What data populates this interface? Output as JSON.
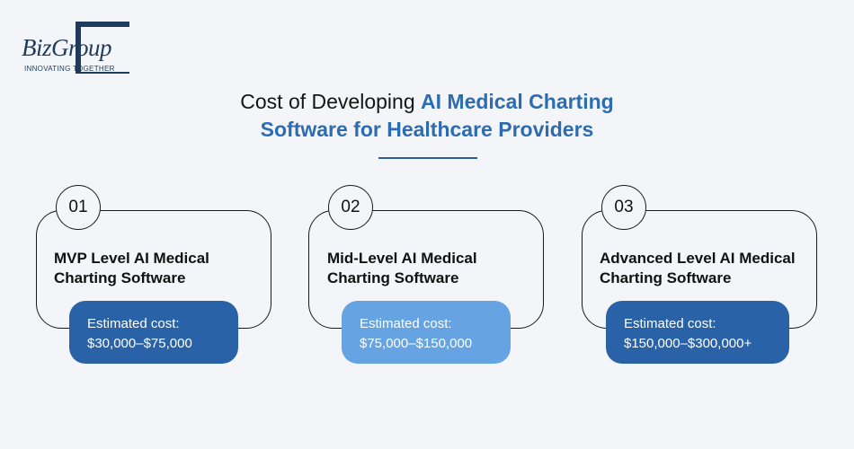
{
  "logo": {
    "text": "BizGroup",
    "tagline": "INNOVATING TOGETHER"
  },
  "title": {
    "line1_plain": "Cost of Developing ",
    "line1_highlight": "AI Medical Charting",
    "line2_highlight": "Software for Healthcare Providers"
  },
  "colors": {
    "accent": "#2d6cb0",
    "cost_dark": "#2a62a7",
    "cost_light": "#66a3e3",
    "logo": "#1f3b5c"
  },
  "cards": [
    {
      "number": "01",
      "title_line1": "MVP Level AI Medical",
      "title_line2": "Charting Software",
      "cost_label": "Estimated cost:",
      "cost_value": "$30,000–$75,000"
    },
    {
      "number": "02",
      "title_line1": "Mid-Level AI Medical",
      "title_line2": "Charting Software",
      "cost_label": "Estimated cost:",
      "cost_value": "$75,000–$150,000"
    },
    {
      "number": "03",
      "title_line1": "Advanced Level AI Medical",
      "title_line2": "Charting Software",
      "cost_label": "Estimated cost:",
      "cost_value": "$150,000–$300,000+"
    }
  ]
}
